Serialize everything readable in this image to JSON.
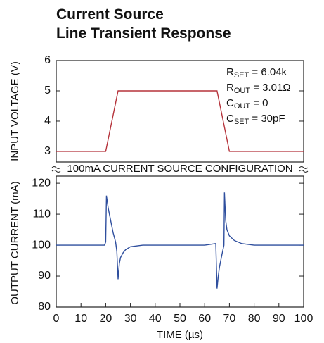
{
  "chart_data": [
    {
      "type": "line",
      "title": "Current Source",
      "subtitle": "Line Transient Response",
      "ylabel": "INPUT VOLTAGE (V)",
      "xlim": [
        0,
        100
      ],
      "ylim": [
        2.65,
        6
      ],
      "yticks": [
        3,
        4,
        5,
        6
      ],
      "annotations": [
        {
          "main": "R",
          "sub": "SET",
          "rest": " = 6.04k"
        },
        {
          "main": "R",
          "sub": "OUT",
          "rest": " = 3.01Ω"
        },
        {
          "main": "C",
          "sub": "OUT",
          "rest": " = 0"
        },
        {
          "main": "C",
          "sub": "SET",
          "rest": " = 30pF"
        }
      ],
      "x": [
        0,
        20,
        25,
        65,
        70,
        100
      ],
      "series": [
        {
          "color": "#b5323a",
          "values": [
            3,
            3,
            5,
            5,
            3,
            3
          ]
        }
      ]
    },
    {
      "type": "line",
      "annotation": "100mA CURRENT SOURCE CONFIGURATION",
      "ylabel": "OUTPUT CURRENT (mA)",
      "xlabel": "TIME (µs)",
      "xlim": [
        0,
        100
      ],
      "xticks": [
        0,
        10,
        20,
        30,
        40,
        50,
        60,
        70,
        80,
        90,
        100
      ],
      "ylim": [
        80,
        122.3
      ],
      "yticks": [
        80,
        90,
        100,
        110,
        120
      ],
      "x": [
        0,
        5,
        10,
        15,
        19.5,
        20,
        20.3,
        21,
        22,
        23,
        24,
        24.5,
        25,
        25.5,
        26,
        27,
        28,
        30,
        35,
        40,
        45,
        50,
        55,
        60,
        64.5,
        65,
        65.5,
        66,
        67,
        67.8,
        68,
        68.5,
        69,
        70,
        72,
        75,
        80,
        85,
        90,
        95,
        100
      ],
      "series": [
        {
          "color": "#2f4f9e",
          "values": [
            100,
            100,
            100,
            100,
            100,
            101,
            116,
            112,
            108,
            104,
            101,
            98,
            89,
            94,
            96,
            97.5,
            98.5,
            99.5,
            100,
            100,
            100,
            100,
            100,
            100,
            100.5,
            86,
            90,
            93,
            97,
            100,
            117,
            108,
            105,
            103,
            101.5,
            100.5,
            100,
            100,
            100,
            100,
            100
          ]
        }
      ]
    }
  ]
}
